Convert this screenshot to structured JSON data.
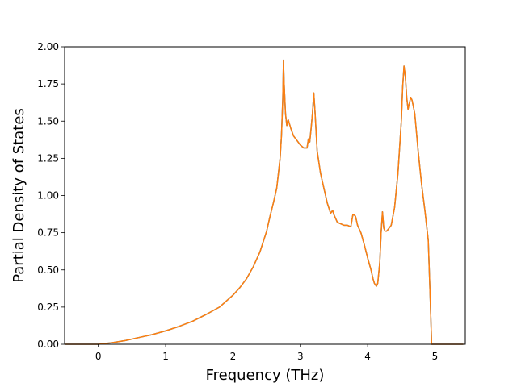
{
  "chart_data": {
    "type": "line",
    "xlabel": "Frequency (THz)",
    "ylabel": "Partial Density of States",
    "xlim": [
      -0.5,
      5.45
    ],
    "ylim": [
      0,
      2.0
    ],
    "x_ticks": [
      {
        "value": 0,
        "label": "0"
      },
      {
        "value": 1,
        "label": "1"
      },
      {
        "value": 2,
        "label": "2"
      },
      {
        "value": 3,
        "label": "3"
      },
      {
        "value": 4,
        "label": "4"
      },
      {
        "value": 5,
        "label": "5"
      }
    ],
    "y_ticks": [
      {
        "value": 0,
        "label": "0.00"
      },
      {
        "value": 0.25,
        "label": "0.25"
      },
      {
        "value": 0.5,
        "label": "0.50"
      },
      {
        "value": 0.75,
        "label": "0.75"
      },
      {
        "value": 1.0,
        "label": "1.00"
      },
      {
        "value": 1.25,
        "label": "1.25"
      },
      {
        "value": 1.5,
        "label": "1.50"
      },
      {
        "value": 1.75,
        "label": "1.75"
      },
      {
        "value": 2.0,
        "label": "2.00"
      }
    ],
    "grid": false,
    "series": [
      {
        "color": "#1f77b4",
        "x": [
          -0.5,
          0.0,
          0.2,
          0.4,
          0.6,
          0.8,
          1.0,
          1.2,
          1.4,
          1.6,
          1.8,
          2.0,
          2.1,
          2.2,
          2.3,
          2.4,
          2.5,
          2.55,
          2.6,
          2.65,
          2.7,
          2.72,
          2.74,
          2.75,
          2.76,
          2.78,
          2.8,
          2.82,
          2.84,
          2.86,
          2.9,
          2.95,
          3.0,
          3.05,
          3.1,
          3.12,
          3.14,
          3.16,
          3.18,
          3.2,
          3.22,
          3.25,
          3.3,
          3.35,
          3.4,
          3.45,
          3.48,
          3.5,
          3.55,
          3.6,
          3.65,
          3.7,
          3.75,
          3.78,
          3.8,
          3.82,
          3.85,
          3.9,
          3.95,
          4.0,
          4.05,
          4.08,
          4.1,
          4.13,
          4.15,
          4.18,
          4.2,
          4.22,
          4.24,
          4.26,
          4.28,
          4.3,
          4.35,
          4.4,
          4.45,
          4.5,
          4.52,
          4.54,
          4.56,
          4.58,
          4.6,
          4.62,
          4.64,
          4.66,
          4.7,
          4.75,
          4.8,
          4.85,
          4.88,
          4.9,
          4.93,
          4.95,
          5.0,
          5.2,
          5.42
        ],
        "y": [
          0.0,
          0.0,
          0.01,
          0.025,
          0.045,
          0.065,
          0.09,
          0.12,
          0.155,
          0.2,
          0.25,
          0.33,
          0.38,
          0.44,
          0.52,
          0.62,
          0.76,
          0.86,
          0.95,
          1.05,
          1.25,
          1.4,
          1.65,
          1.91,
          1.75,
          1.55,
          1.47,
          1.51,
          1.48,
          1.45,
          1.4,
          1.37,
          1.34,
          1.32,
          1.32,
          1.38,
          1.36,
          1.45,
          1.55,
          1.69,
          1.55,
          1.3,
          1.15,
          1.05,
          0.95,
          0.88,
          0.9,
          0.87,
          0.82,
          0.81,
          0.8,
          0.8,
          0.79,
          0.87,
          0.87,
          0.86,
          0.8,
          0.75,
          0.67,
          0.58,
          0.5,
          0.44,
          0.41,
          0.39,
          0.41,
          0.55,
          0.75,
          0.89,
          0.78,
          0.76,
          0.76,
          0.77,
          0.8,
          0.92,
          1.15,
          1.5,
          1.73,
          1.87,
          1.8,
          1.66,
          1.58,
          1.62,
          1.66,
          1.64,
          1.55,
          1.3,
          1.08,
          0.9,
          0.78,
          0.7,
          0.3,
          0.0,
          0.0,
          0.0,
          0.0
        ]
      },
      {
        "color": "#ff7f0e",
        "x": [
          -0.5,
          0.0,
          0.2,
          0.4,
          0.6,
          0.8,
          1.0,
          1.2,
          1.4,
          1.6,
          1.8,
          2.0,
          2.1,
          2.2,
          2.3,
          2.4,
          2.5,
          2.55,
          2.6,
          2.65,
          2.7,
          2.72,
          2.74,
          2.75,
          2.76,
          2.78,
          2.8,
          2.82,
          2.84,
          2.86,
          2.9,
          2.95,
          3.0,
          3.05,
          3.1,
          3.12,
          3.14,
          3.16,
          3.18,
          3.2,
          3.22,
          3.25,
          3.3,
          3.35,
          3.4,
          3.45,
          3.48,
          3.5,
          3.55,
          3.6,
          3.65,
          3.7,
          3.75,
          3.78,
          3.8,
          3.82,
          3.85,
          3.9,
          3.95,
          4.0,
          4.05,
          4.08,
          4.1,
          4.13,
          4.15,
          4.18,
          4.2,
          4.22,
          4.24,
          4.26,
          4.28,
          4.3,
          4.35,
          4.4,
          4.45,
          4.5,
          4.52,
          4.54,
          4.56,
          4.58,
          4.6,
          4.62,
          4.64,
          4.66,
          4.7,
          4.75,
          4.8,
          4.85,
          4.88,
          4.9,
          4.93,
          4.95,
          5.0,
          5.2,
          5.42
        ],
        "y": [
          0.0,
          0.0,
          0.01,
          0.025,
          0.045,
          0.065,
          0.09,
          0.12,
          0.155,
          0.2,
          0.25,
          0.33,
          0.38,
          0.44,
          0.52,
          0.62,
          0.76,
          0.86,
          0.95,
          1.05,
          1.25,
          1.4,
          1.65,
          1.91,
          1.75,
          1.55,
          1.47,
          1.51,
          1.48,
          1.45,
          1.4,
          1.37,
          1.34,
          1.32,
          1.32,
          1.38,
          1.36,
          1.45,
          1.55,
          1.69,
          1.55,
          1.3,
          1.15,
          1.05,
          0.95,
          0.88,
          0.9,
          0.87,
          0.82,
          0.81,
          0.8,
          0.8,
          0.79,
          0.87,
          0.87,
          0.86,
          0.8,
          0.75,
          0.67,
          0.58,
          0.5,
          0.44,
          0.41,
          0.39,
          0.41,
          0.55,
          0.75,
          0.89,
          0.78,
          0.76,
          0.76,
          0.77,
          0.8,
          0.92,
          1.15,
          1.5,
          1.73,
          1.87,
          1.8,
          1.66,
          1.58,
          1.62,
          1.66,
          1.64,
          1.55,
          1.3,
          1.08,
          0.9,
          0.78,
          0.7,
          0.3,
          0.0,
          0.0,
          0.0,
          0.0
        ]
      }
    ]
  }
}
